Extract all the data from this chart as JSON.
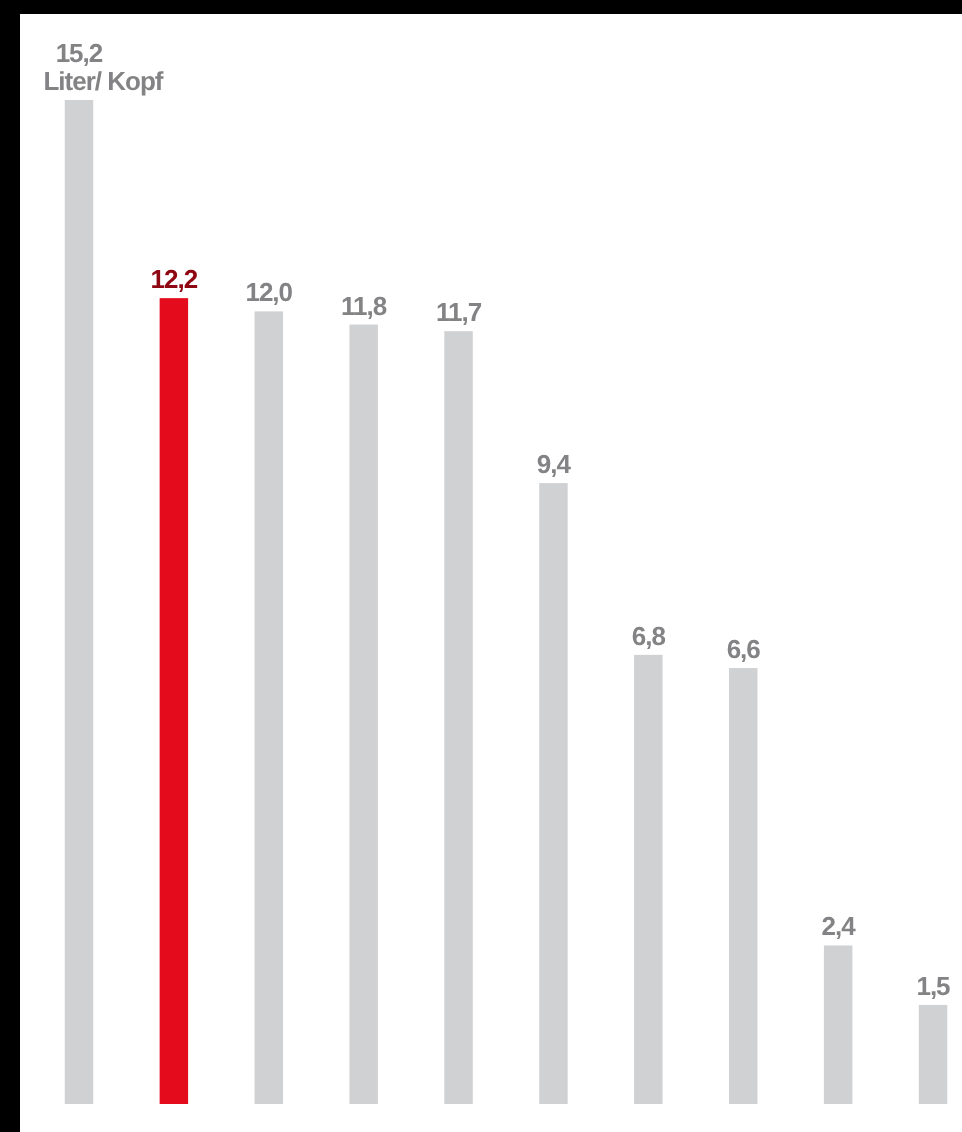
{
  "chart_data": {
    "type": "bar",
    "categories": [
      null,
      null,
      null,
      null,
      null,
      null,
      null,
      null,
      null,
      null
    ],
    "values": [
      15.2,
      12.2,
      12.0,
      11.8,
      11.7,
      9.4,
      6.8,
      6.6,
      2.4,
      1.5
    ],
    "colors": [
      "#d0d1d3",
      "#e30b1c",
      "#d0d1d3",
      "#d0d1d3",
      "#d0d1d3",
      "#d0d1d3",
      "#d0d1d3",
      "#d0d1d3",
      "#d0d1d3",
      "#d0d1d3"
    ],
    "value_labels": [
      "15,2 Liter/ Kopf",
      "12,2",
      "12,0",
      "11,8",
      "11,7",
      "9,4",
      "6,8",
      "6,6",
      "2,4",
      "1,5"
    ]
  }
}
